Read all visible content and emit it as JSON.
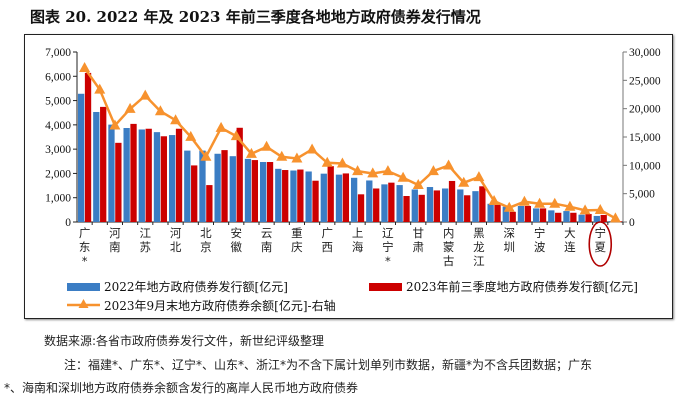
{
  "title": "图表 20. 2022 年及 2023 年前三季度各地地方政府债券发行情况",
  "source": "数据来源:各省市政府债券发行文件，新世纪评级整理",
  "note_line1": "注：福建*、广东*、辽宁*、山东*、浙江*为不含下属计划单列市数据，新疆*为不含兵团数据；广东",
  "note_line2": "*、海南和深圳地方政府债券余额含发行的离岸人民币地方政府债券",
  "colors": {
    "blue": "#3B7DC4",
    "red": "#CC0000",
    "orange": "#F7922E",
    "highlight": "#B00000"
  },
  "chart_data": {
    "type": "bar",
    "title": "图表 20. 2022 年及 2023 年前三季度各地地方政府债券发行情况",
    "categories": [
      "广东*",
      "",
      "河南",
      "",
      "江苏",
      "",
      "河北",
      "",
      "北京",
      "",
      "安徽",
      "",
      "云南",
      "",
      "重庆",
      "",
      "广西",
      "",
      "上海",
      "",
      "辽宁*",
      "",
      "甘肃",
      "",
      "内蒙古",
      "",
      "黑龙江",
      "",
      "深圳",
      "",
      "宁波",
      "",
      "大连",
      "",
      "宁夏",
      ""
    ],
    "highlighted_category": "宁夏",
    "series": [
      {
        "name": "2022年地方政府债券发行额[亿元]",
        "axis": "left",
        "type": "bar",
        "values": [
          5280,
          4530,
          4010,
          3870,
          3810,
          3700,
          3580,
          2940,
          2940,
          2810,
          2710,
          2600,
          2470,
          2190,
          2120,
          2080,
          1990,
          1950,
          1820,
          1710,
          1550,
          1520,
          1340,
          1440,
          1380,
          1340,
          1270,
          750,
          630,
          660,
          560,
          480,
          450,
          300,
          250,
          40
        ]
      },
      {
        "name": "2023年前三季度地方政府债券发行额[亿元]",
        "axis": "left",
        "type": "bar",
        "values": [
          6140,
          4740,
          3260,
          4040,
          3840,
          3530,
          3840,
          2330,
          1520,
          2960,
          3880,
          2550,
          2470,
          2140,
          2160,
          1700,
          2300,
          2000,
          1140,
          1380,
          1620,
          1070,
          1120,
          1300,
          1690,
          1100,
          1470,
          750,
          420,
          660,
          560,
          380,
          380,
          330,
          290,
          30
        ]
      },
      {
        "name": "2023年9月末地方政府债券余额[亿元]-右轴",
        "axis": "right",
        "type": "line",
        "values": [
          27180,
          23370,
          17030,
          19960,
          22310,
          19550,
          17960,
          15030,
          11510,
          16610,
          15150,
          12030,
          13270,
          11510,
          11210,
          12800,
          10450,
          10330,
          8980,
          8570,
          8980,
          7810,
          6520,
          8980,
          9980,
          6930,
          7930,
          3700,
          2520,
          3580,
          3230,
          3230,
          2700,
          2060,
          2110,
          650
        ]
      }
    ],
    "left_axis": {
      "ylim": [
        0,
        7000
      ],
      "ticks": [
        "0",
        "1,000",
        "2,000",
        "3,000",
        "4,000",
        "5,000",
        "6,000",
        "7,000"
      ]
    },
    "right_axis": {
      "ylim": [
        0,
        30000
      ],
      "ticks": [
        "0",
        "5,000",
        "10,000",
        "15,000",
        "20,000",
        "25,000",
        "30,000"
      ]
    },
    "legend_placement": "bottom",
    "grid": false
  }
}
